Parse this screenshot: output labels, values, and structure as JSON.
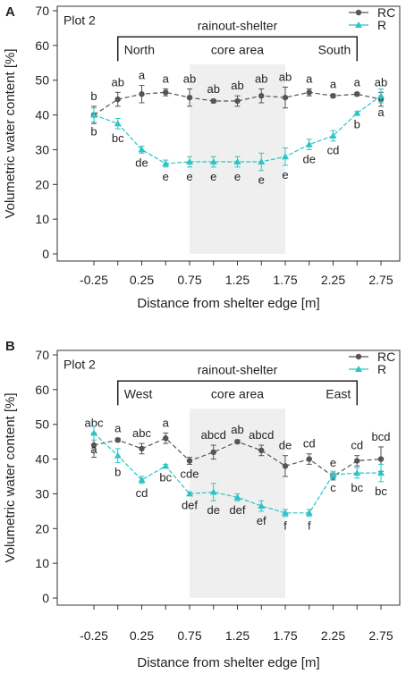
{
  "chart_data": [
    {
      "type": "line",
      "panel_label": "A",
      "plot_label": "Plot 2",
      "xlabel": "Distance from shelter edge [m]",
      "ylabel": "Volumetric water content [%]",
      "ylim": [
        0,
        70
      ],
      "yticks": [
        0,
        10,
        20,
        30,
        40,
        50,
        60,
        70
      ],
      "xticks": [
        "-0.25",
        "0.25",
        "0.75",
        "1.25",
        "1.75",
        "2.25",
        "2.75"
      ],
      "x": [
        -0.25,
        0,
        0.25,
        0.5,
        0.75,
        1,
        1.25,
        1.5,
        1.75,
        2,
        2.25,
        2.5,
        2.75
      ],
      "legend": {
        "position": "top-right",
        "entries": [
          "RC",
          "R"
        ]
      },
      "bracket": {
        "label": "rainout-shelter",
        "left": "North",
        "right": "South"
      },
      "core_area": {
        "label": "core area",
        "from": 0.75,
        "to": 1.75
      },
      "series": [
        {
          "name": "RC",
          "color": "#555555",
          "marker": "circle",
          "values": [
            40,
            44.5,
            46,
            46.5,
            45,
            44,
            44,
            45.5,
            45,
            46.5,
            45.5,
            46,
            44.5
          ],
          "errors": [
            2.5,
            2,
            2.5,
            1,
            2.5,
            0.5,
            1.5,
            2,
            3,
            1,
            0.5,
            0.5,
            2
          ],
          "letters": [
            "b",
            "ab",
            "a",
            "a",
            "ab",
            "ab",
            "ab",
            "ab",
            "ab",
            "a",
            "a",
            "a",
            "ab"
          ],
          "letter_pos": [
            "above",
            "above",
            "above",
            "above",
            "above",
            "above",
            "above",
            "above",
            "above",
            "above",
            "above",
            "above",
            "above"
          ]
        },
        {
          "name": "R",
          "color": "#2cc4c4",
          "marker": "triangle",
          "values": [
            40,
            37.5,
            30,
            26,
            26.5,
            26.5,
            26.5,
            26.5,
            28,
            31.5,
            34,
            40.5,
            45.5
          ],
          "errors": [
            2,
            1.5,
            1,
            1,
            1.5,
            1.5,
            1.5,
            2.5,
            2.5,
            1.5,
            1.5,
            0.5,
            2
          ],
          "letters": [
            "b",
            "bc",
            "de",
            "e",
            "e",
            "e",
            "e",
            "e",
            "e",
            "de",
            "cd",
            "b",
            "a"
          ],
          "letter_pos": [
            "below",
            "below",
            "below",
            "below",
            "below",
            "below",
            "below",
            "below",
            "below",
            "below",
            "below",
            "below",
            "below"
          ]
        }
      ]
    },
    {
      "type": "line",
      "panel_label": "B",
      "plot_label": "Plot 2",
      "xlabel": "Distance from shelter edge [m]",
      "ylabel": "Volumetric water content [%]",
      "ylim": [
        0,
        70
      ],
      "yticks": [
        0,
        10,
        20,
        30,
        40,
        50,
        60,
        70
      ],
      "xticks": [
        "-0.25",
        "0.25",
        "0.75",
        "1.25",
        "1.75",
        "2.25",
        "2.75"
      ],
      "x": [
        -0.25,
        0,
        0.25,
        0.5,
        0.75,
        1,
        1.25,
        1.5,
        1.75,
        2,
        2.25,
        2.5,
        2.75
      ],
      "legend": {
        "position": "top-right",
        "entries": [
          "RC",
          "R"
        ]
      },
      "bracket": {
        "label": "rainout-shelter",
        "left": "West",
        "right": "East"
      },
      "core_area": {
        "label": "core area",
        "from": 0.75,
        "to": 1.75
      },
      "series": [
        {
          "name": "RC",
          "color": "#555555",
          "marker": "circle",
          "values": [
            44,
            45.5,
            43,
            46,
            39.5,
            42,
            45,
            42.5,
            38,
            40,
            35,
            39.5,
            40
          ],
          "errors": [
            3.5,
            0.5,
            1.5,
            1.5,
            1,
            2,
            0.5,
            1.5,
            3,
            1.5,
            1,
            1.5,
            3.5
          ],
          "letters": [
            "abc",
            "a",
            "abc",
            "a",
            "cde",
            "abcd",
            "ab",
            "abcd",
            "de",
            "cd",
            "e",
            "cd",
            "bcd"
          ],
          "letter_pos": [
            "above",
            "above",
            "above",
            "above",
            "below",
            "above",
            "above",
            "above",
            "above",
            "above",
            "above",
            "above",
            "above"
          ]
        },
        {
          "name": "R",
          "color": "#2cc4c4",
          "marker": "triangle",
          "values": [
            47.5,
            41,
            34,
            38,
            30,
            30.5,
            29,
            26.5,
            24.5,
            24.5,
            35.5,
            36,
            36
          ],
          "errors": [
            2,
            2,
            1,
            0.5,
            0.5,
            2.5,
            1,
            1.5,
            1,
            1,
            1,
            1.5,
            2.5
          ],
          "letters": [
            "a",
            "b",
            "cd",
            "bc",
            "def",
            "de",
            "def",
            "ef",
            "f",
            "f",
            "c",
            "bc",
            "bc"
          ],
          "letter_pos": [
            "below",
            "below",
            "below",
            "below",
            "below",
            "below",
            "below",
            "below",
            "below",
            "below",
            "below",
            "below",
            "below"
          ]
        }
      ]
    }
  ]
}
